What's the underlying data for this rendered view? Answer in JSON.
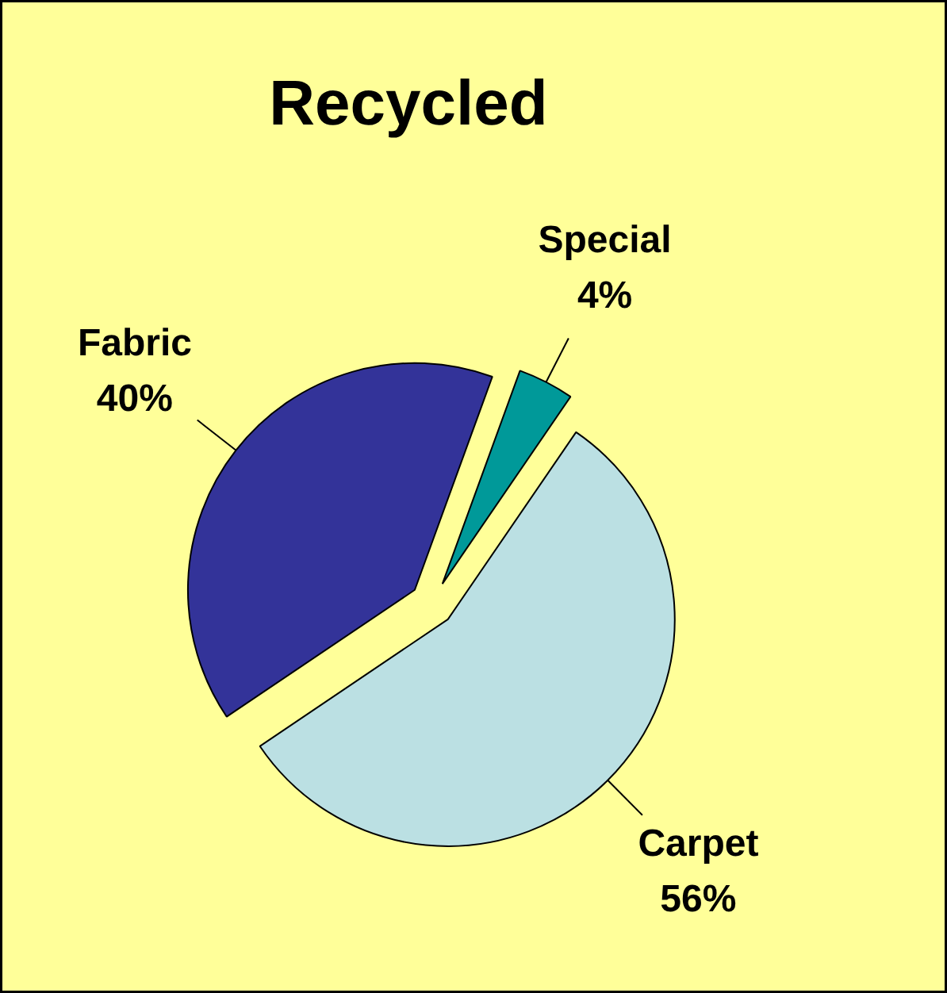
{
  "chart_data": {
    "type": "pie",
    "title": "Recycled",
    "categories": [
      "Special",
      "Carpet",
      "Fabric"
    ],
    "values": [
      4,
      56,
      40
    ],
    "value_labels": [
      "4%",
      "56%",
      "40%"
    ],
    "colors": [
      "#009999",
      "#bbe0e3",
      "#333399"
    ]
  }
}
